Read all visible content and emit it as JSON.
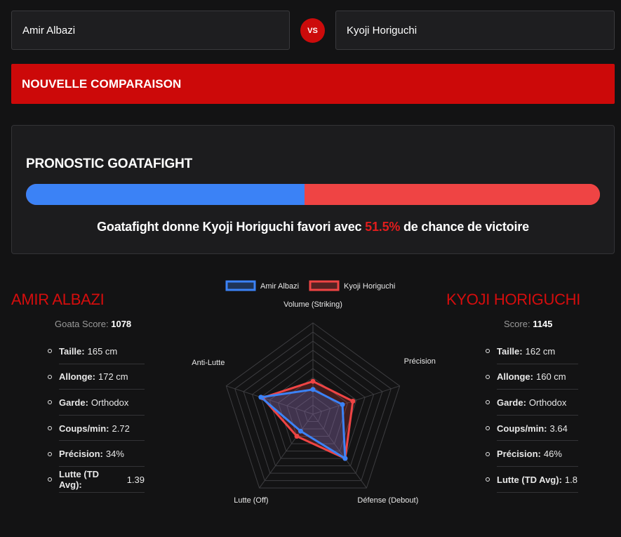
{
  "inputs": {
    "left_value": "Amir Albazi",
    "right_value": "Kyoji Horiguchi",
    "vs_label": "VS"
  },
  "compare_button_label": "NOUVELLE COMPARAISON",
  "prediction": {
    "title": "PRONOSTIC GOATAFIGHT",
    "text_before": "Goatafight donne Kyoji Horiguchi favori avec ",
    "percent": "51.5%",
    "text_after": " de chance de victoire",
    "left_share": 0.485,
    "left_color": "#3b82f6",
    "right_color": "#ef4444"
  },
  "fighters": {
    "left": {
      "name": "AMIR ALBAZI",
      "score_label": "Goata Score:",
      "score_value": "1078",
      "stats": [
        {
          "label": "Taille:",
          "value": "165 cm"
        },
        {
          "label": "Allonge:",
          "value": "172 cm"
        },
        {
          "label": "Garde:",
          "value": "Orthodox"
        },
        {
          "label": "Coups/min:",
          "value": "2.72"
        },
        {
          "label": "Précision:",
          "value": "34%"
        },
        {
          "label": "Lutte (TD Avg):",
          "value": "1.39"
        }
      ]
    },
    "right": {
      "name": "KYOJI HORIGUCHI",
      "score_label": "Score:",
      "score_value": "1145",
      "stats": [
        {
          "label": "Taille:",
          "value": "162 cm"
        },
        {
          "label": "Allonge:",
          "value": "160 cm"
        },
        {
          "label": "Garde:",
          "value": "Orthodox"
        },
        {
          "label": "Coups/min:",
          "value": "3.64"
        },
        {
          "label": "Précision:",
          "value": "46%"
        },
        {
          "label": "Lutte (TD Avg):",
          "value": "1.8"
        }
      ]
    }
  },
  "chart_data": {
    "type": "radar",
    "axes": [
      "Volume (Striking)",
      "Précision",
      "Défense (Debout)",
      "Lutte (Off)",
      "Anti-Lutte"
    ],
    "range": [
      0,
      10
    ],
    "grid": true,
    "legend_position": "top",
    "series": [
      {
        "name": "Amir Albazi",
        "color": "#3b82f6",
        "values": [
          2.7,
          3.4,
          6.0,
          2.3,
          6.0
        ]
      },
      {
        "name": "Kyoji Horiguchi",
        "color": "#ef4444",
        "values": [
          3.6,
          4.6,
          6.0,
          3.0,
          5.8
        ]
      }
    ]
  }
}
